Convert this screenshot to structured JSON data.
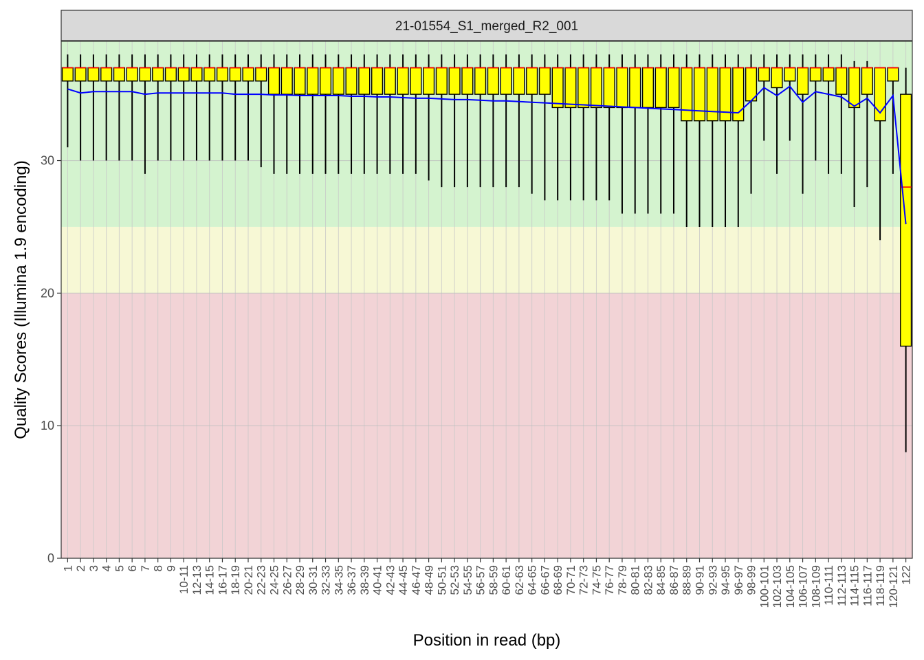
{
  "chart_data": {
    "type": "box",
    "facet_title": "21-01554_S1_merged_R2_001",
    "xlabel": "Position in read (bp)",
    "ylabel": "Quality Scores (Illumina 1.9 encoding)",
    "ylim": [
      0,
      39
    ],
    "yticks": [
      0,
      10,
      20,
      30
    ],
    "quality_bands": [
      {
        "from": 0,
        "to": 20,
        "color": "#f2d3d6"
      },
      {
        "from": 20,
        "to": 25,
        "color": "#f7f8d5"
      },
      {
        "from": 25,
        "to": 39,
        "color": "#d4f3cf"
      }
    ],
    "colors": {
      "box_fill": "#ffff00",
      "median": "#ff0000",
      "mean_line": "#0000ff",
      "whisker": "#000000"
    },
    "series_meaning": [
      "whisker low",
      "lower quartile",
      "median",
      "upper quartile",
      "whisker high",
      "mean"
    ],
    "positions": [
      "1",
      "2",
      "3",
      "4",
      "5",
      "6",
      "7",
      "8",
      "9",
      "10-11",
      "12-13",
      "14-15",
      "16-17",
      "18-19",
      "20-21",
      "22-23",
      "24-25",
      "26-27",
      "28-29",
      "30-31",
      "32-33",
      "34-35",
      "36-37",
      "38-39",
      "40-41",
      "42-43",
      "44-45",
      "46-47",
      "48-49",
      "50-51",
      "52-53",
      "54-55",
      "56-57",
      "58-59",
      "60-61",
      "62-63",
      "64-65",
      "66-67",
      "68-69",
      "70-71",
      "72-73",
      "74-75",
      "76-77",
      "78-79",
      "80-81",
      "82-83",
      "84-85",
      "86-87",
      "88-89",
      "90-91",
      "92-93",
      "94-95",
      "96-97",
      "98-99",
      "100-101",
      "102-103",
      "104-105",
      "106-107",
      "108-109",
      "110-111",
      "112-113",
      "114-115",
      "116-117",
      "118-119",
      "120-121",
      "122"
    ],
    "whisker_low": [
      31,
      30,
      30,
      30,
      30,
      30,
      29,
      30,
      30,
      30,
      30,
      30,
      30,
      30,
      30,
      29.5,
      29,
      29,
      29,
      29,
      29,
      29,
      29,
      29,
      29,
      29,
      29,
      29,
      28.5,
      28,
      28,
      28,
      28,
      28,
      28,
      28,
      27.5,
      27,
      27,
      27,
      27,
      27,
      27,
      26,
      26,
      26,
      26,
      26,
      25,
      25,
      25,
      25,
      25,
      27.5,
      31.5,
      29,
      31.5,
      27.5,
      30,
      29,
      29,
      26.5,
      28,
      24,
      29,
      8
    ],
    "q1": [
      36,
      36,
      36,
      36,
      36,
      36,
      36,
      36,
      36,
      36,
      36,
      36,
      36,
      36,
      36,
      36,
      35,
      35,
      35,
      35,
      35,
      35,
      35,
      35,
      35,
      35,
      35,
      35,
      35,
      35,
      35,
      35,
      35,
      35,
      35,
      35,
      35,
      35,
      34,
      34,
      34,
      34,
      34,
      34,
      34,
      34,
      34,
      34,
      33,
      33,
      33,
      33,
      33,
      34.5,
      36,
      35.5,
      36,
      35,
      36,
      36,
      35,
      34,
      35,
      33,
      36,
      16
    ],
    "median": [
      37,
      37,
      37,
      37,
      37,
      37,
      37,
      37,
      37,
      37,
      37,
      37,
      37,
      37,
      37,
      37,
      37,
      37,
      37,
      37,
      37,
      37,
      37,
      37,
      37,
      37,
      37,
      37,
      37,
      37,
      37,
      37,
      37,
      37,
      37,
      37,
      37,
      37,
      37,
      37,
      37,
      37,
      37,
      37,
      37,
      37,
      37,
      37,
      37,
      37,
      37,
      37,
      37,
      37,
      37,
      37,
      37,
      37,
      37,
      37,
      37,
      37,
      37,
      37,
      37,
      28
    ],
    "q3": [
      37,
      37,
      37,
      37,
      37,
      37,
      37,
      37,
      37,
      37,
      37,
      37,
      37,
      37,
      37,
      37,
      37,
      37,
      37,
      37,
      37,
      37,
      37,
      37,
      37,
      37,
      37,
      37,
      37,
      37,
      37,
      37,
      37,
      37,
      37,
      37,
      37,
      37,
      37,
      37,
      37,
      37,
      37,
      37,
      37,
      37,
      37,
      37,
      37,
      37,
      37,
      37,
      37,
      37,
      37,
      37,
      37,
      37,
      37,
      37,
      37,
      37,
      37,
      37,
      37,
      35
    ],
    "whisker_high": [
      38,
      38,
      38,
      38,
      38,
      38,
      38,
      38,
      38,
      38,
      38,
      38,
      38,
      38,
      38,
      38,
      38,
      38,
      38,
      38,
      38,
      38,
      38,
      38,
      38,
      38,
      38,
      38,
      38,
      38,
      38,
      38,
      38,
      38,
      38,
      38,
      38,
      38,
      38,
      38,
      38,
      38,
      38,
      38,
      38,
      38,
      38,
      38,
      38,
      38,
      38,
      38,
      38,
      38,
      38,
      38,
      38,
      38,
      38,
      38,
      38,
      37.5,
      37.5,
      37,
      37,
      37
    ],
    "mean": [
      35.4,
      35.1,
      35.2,
      35.2,
      35.2,
      35.2,
      35.0,
      35.1,
      35.1,
      35.1,
      35.1,
      35.1,
      35.1,
      35.0,
      35.0,
      35.0,
      34.95,
      34.95,
      34.9,
      34.9,
      34.9,
      34.9,
      34.85,
      34.85,
      34.8,
      34.8,
      34.75,
      34.7,
      34.7,
      34.65,
      34.6,
      34.6,
      34.55,
      34.5,
      34.5,
      34.45,
      34.4,
      34.35,
      34.3,
      34.25,
      34.2,
      34.15,
      34.1,
      34.05,
      34.0,
      33.95,
      33.9,
      33.85,
      33.8,
      33.75,
      33.7,
      33.65,
      33.6,
      34.5,
      35.5,
      34.9,
      35.6,
      34.4,
      35.2,
      35.0,
      34.8,
      34.1,
      34.7,
      33.6,
      34.9,
      25.2
    ]
  }
}
